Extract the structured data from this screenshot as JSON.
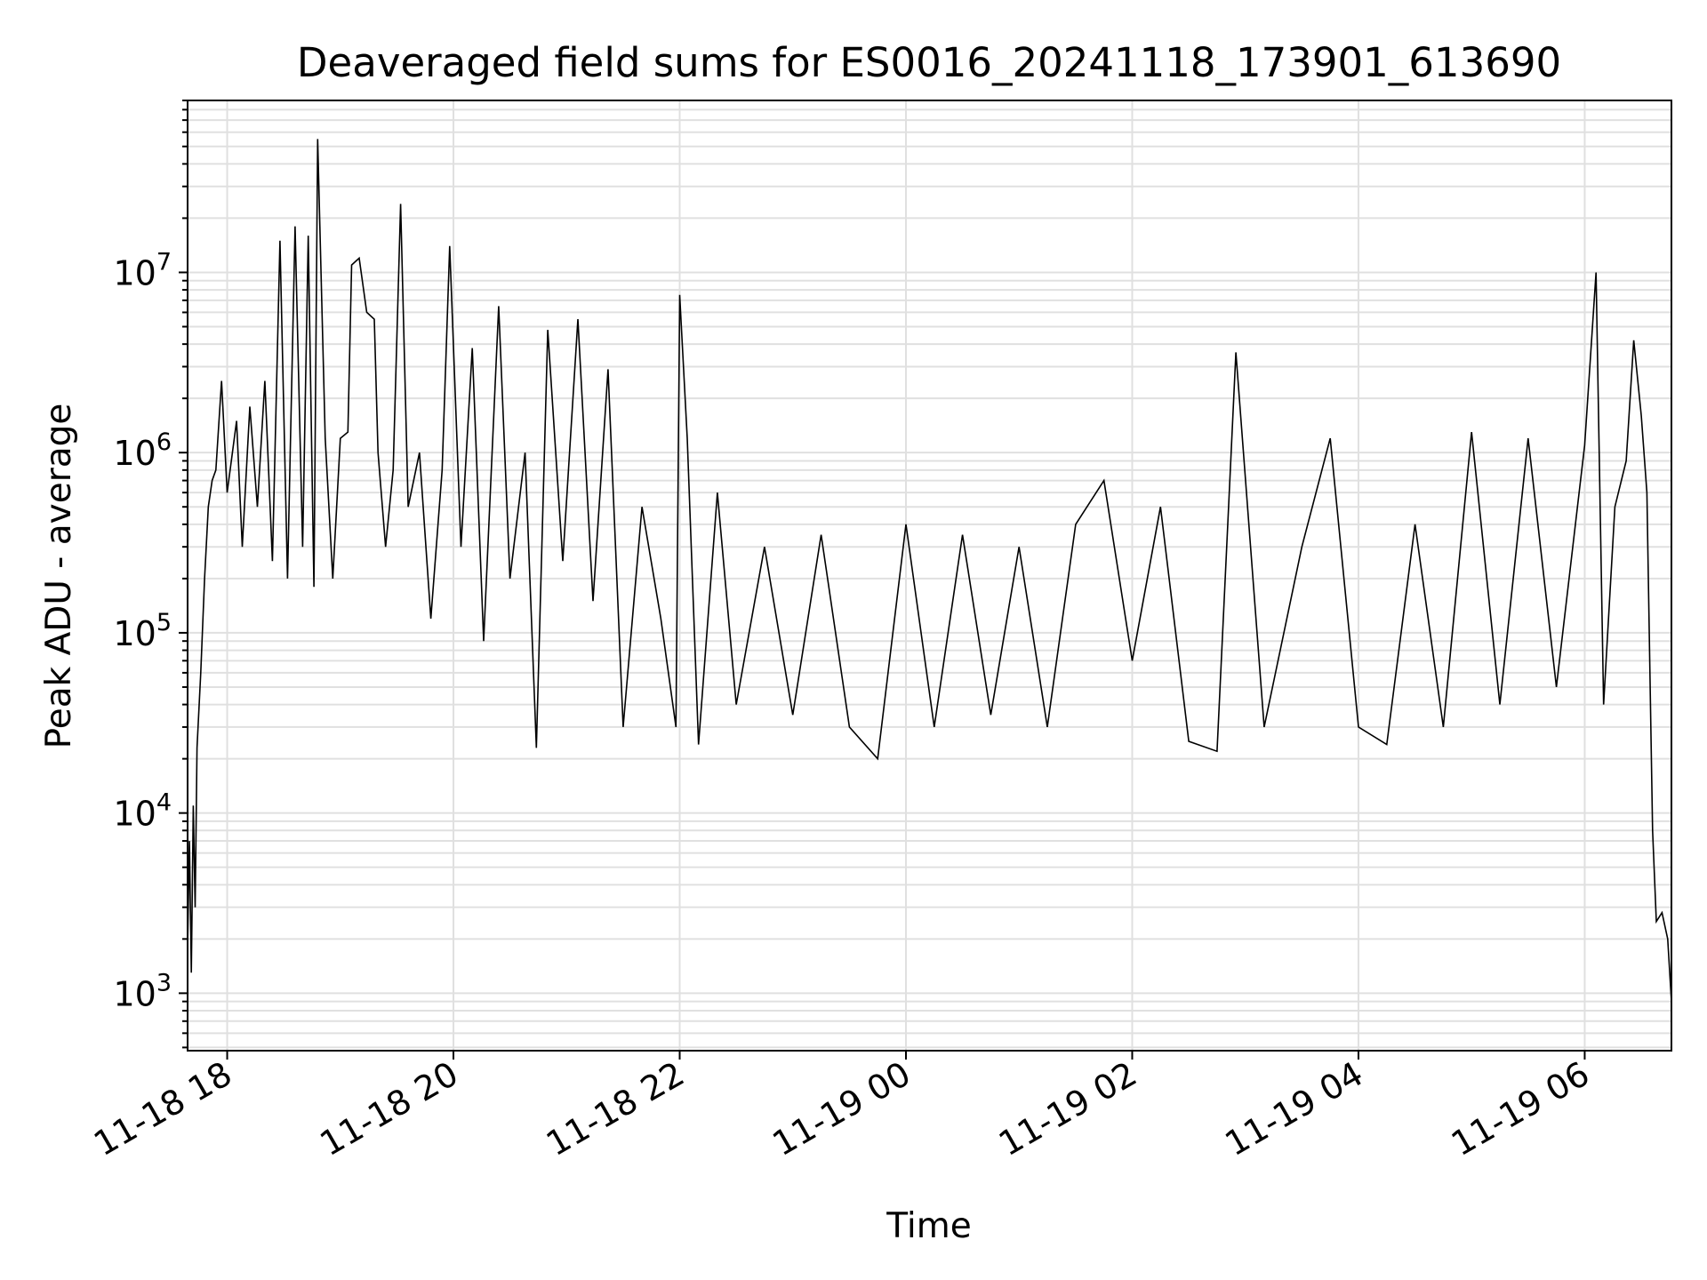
{
  "chart_data": {
    "type": "line",
    "title": "Deaveraged field sums for ES0016_20241118_173901_613690",
    "xlabel": "Time",
    "ylabel": "Peak ADU - average",
    "yscale": "log",
    "grid": "on",
    "legend": "none",
    "xlim": [
      "2024-11-18 17:39",
      "2024-11-19 06:46"
    ],
    "ylim": [
      480,
      90000000
    ],
    "x_ticks": [
      {
        "value": "2024-11-18 18:00",
        "label": "11-18 18"
      },
      {
        "value": "2024-11-18 20:00",
        "label": "11-18 20"
      },
      {
        "value": "2024-11-18 22:00",
        "label": "11-18 22"
      },
      {
        "value": "2024-11-19 00:00",
        "label": "11-19 00"
      },
      {
        "value": "2024-11-19 02:00",
        "label": "11-19 02"
      },
      {
        "value": "2024-11-19 04:00",
        "label": "11-19 04"
      },
      {
        "value": "2024-11-19 06:00",
        "label": "11-19 06"
      }
    ],
    "y_ticks": [
      {
        "value": 1000,
        "base": "10",
        "exp": "3"
      },
      {
        "value": 10000,
        "base": "10",
        "exp": "4"
      },
      {
        "value": 100000,
        "base": "10",
        "exp": "5"
      },
      {
        "value": 1000000,
        "base": "10",
        "exp": "6"
      },
      {
        "value": 10000000,
        "base": "10",
        "exp": "7"
      }
    ],
    "series": [
      {
        "color": "#000000",
        "points": [
          [
            "2024-11-18 17:39",
            1800
          ],
          [
            "2024-11-18 17:40",
            7000
          ],
          [
            "2024-11-18 17:41",
            1300
          ],
          [
            "2024-11-18 17:42",
            11000
          ],
          [
            "2024-11-18 17:43",
            3000
          ],
          [
            "2024-11-18 17:44",
            23000
          ],
          [
            "2024-11-18 17:46",
            60000
          ],
          [
            "2024-11-18 17:48",
            200000
          ],
          [
            "2024-11-18 17:50",
            500000
          ],
          [
            "2024-11-18 17:52",
            700000
          ],
          [
            "2024-11-18 17:54",
            800000
          ],
          [
            "2024-11-18 17:57",
            2500000
          ],
          [
            "2024-11-18 18:00",
            600000
          ],
          [
            "2024-11-18 18:05",
            1500000
          ],
          [
            "2024-11-18 18:08",
            300000
          ],
          [
            "2024-11-18 18:12",
            1800000
          ],
          [
            "2024-11-18 18:16",
            500000
          ],
          [
            "2024-11-18 18:20",
            2500000
          ],
          [
            "2024-11-18 18:24",
            250000
          ],
          [
            "2024-11-18 18:28",
            15000000
          ],
          [
            "2024-11-18 18:32",
            200000
          ],
          [
            "2024-11-18 18:36",
            18000000
          ],
          [
            "2024-11-18 18:40",
            300000
          ],
          [
            "2024-11-18 18:43",
            16000000
          ],
          [
            "2024-11-18 18:46",
            180000
          ],
          [
            "2024-11-18 18:48",
            55000000
          ],
          [
            "2024-11-18 18:52",
            1200000
          ],
          [
            "2024-11-18 18:56",
            200000
          ],
          [
            "2024-11-18 19:00",
            1200000
          ],
          [
            "2024-11-18 19:04",
            1300000
          ],
          [
            "2024-11-18 19:06",
            11000000
          ],
          [
            "2024-11-18 19:10",
            12000000
          ],
          [
            "2024-11-18 19:14",
            6000000
          ],
          [
            "2024-11-18 19:18",
            5500000
          ],
          [
            "2024-11-18 19:20",
            1000000
          ],
          [
            "2024-11-18 19:24",
            300000
          ],
          [
            "2024-11-18 19:28",
            800000
          ],
          [
            "2024-11-18 19:32",
            24000000
          ],
          [
            "2024-11-18 19:36",
            500000
          ],
          [
            "2024-11-18 19:42",
            1000000
          ],
          [
            "2024-11-18 19:48",
            120000
          ],
          [
            "2024-11-18 19:54",
            800000
          ],
          [
            "2024-11-18 19:58",
            14000000
          ],
          [
            "2024-11-18 20:04",
            300000
          ],
          [
            "2024-11-18 20:10",
            3800000
          ],
          [
            "2024-11-18 20:16",
            90000
          ],
          [
            "2024-11-18 20:24",
            6500000
          ],
          [
            "2024-11-18 20:30",
            200000
          ],
          [
            "2024-11-18 20:38",
            1000000
          ],
          [
            "2024-11-18 20:44",
            23000
          ],
          [
            "2024-11-18 20:50",
            4800000
          ],
          [
            "2024-11-18 20:58",
            250000
          ],
          [
            "2024-11-18 21:06",
            5500000
          ],
          [
            "2024-11-18 21:14",
            150000
          ],
          [
            "2024-11-18 21:22",
            2900000
          ],
          [
            "2024-11-18 21:30",
            30000
          ],
          [
            "2024-11-18 21:40",
            500000
          ],
          [
            "2024-11-18 21:50",
            120000
          ],
          [
            "2024-11-18 21:58",
            30000
          ],
          [
            "2024-11-18 22:00",
            7500000
          ],
          [
            "2024-11-18 22:04",
            1200000
          ],
          [
            "2024-11-18 22:10",
            24000
          ],
          [
            "2024-11-18 22:20",
            600000
          ],
          [
            "2024-11-18 22:30",
            40000
          ],
          [
            "2024-11-18 22:45",
            300000
          ],
          [
            "2024-11-18 23:00",
            35000
          ],
          [
            "2024-11-18 23:15",
            350000
          ],
          [
            "2024-11-18 23:30",
            30000
          ],
          [
            "2024-11-18 23:45",
            20000
          ],
          [
            "2024-11-19 00:00",
            400000
          ],
          [
            "2024-11-19 00:15",
            30000
          ],
          [
            "2024-11-19 00:30",
            350000
          ],
          [
            "2024-11-19 00:45",
            35000
          ],
          [
            "2024-11-19 01:00",
            300000
          ],
          [
            "2024-11-19 01:15",
            30000
          ],
          [
            "2024-11-19 01:30",
            400000
          ],
          [
            "2024-11-19 01:45",
            700000
          ],
          [
            "2024-11-19 02:00",
            70000
          ],
          [
            "2024-11-19 02:15",
            500000
          ],
          [
            "2024-11-19 02:30",
            25000
          ],
          [
            "2024-11-19 02:45",
            22000
          ],
          [
            "2024-11-19 02:55",
            3600000
          ],
          [
            "2024-11-19 03:10",
            30000
          ],
          [
            "2024-11-19 03:30",
            300000
          ],
          [
            "2024-11-19 03:45",
            1200000
          ],
          [
            "2024-11-19 04:00",
            30000
          ],
          [
            "2024-11-19 04:15",
            24000
          ],
          [
            "2024-11-19 04:30",
            400000
          ],
          [
            "2024-11-19 04:45",
            30000
          ],
          [
            "2024-11-19 05:00",
            1300000
          ],
          [
            "2024-11-19 05:15",
            40000
          ],
          [
            "2024-11-19 05:30",
            1200000
          ],
          [
            "2024-11-19 05:45",
            50000
          ],
          [
            "2024-11-19 06:00",
            1100000
          ],
          [
            "2024-11-19 06:06",
            10000000
          ],
          [
            "2024-11-19 06:10",
            40000
          ],
          [
            "2024-11-19 06:16",
            500000
          ],
          [
            "2024-11-19 06:22",
            900000
          ],
          [
            "2024-11-19 06:26",
            4200000
          ],
          [
            "2024-11-19 06:30",
            1600000
          ],
          [
            "2024-11-19 06:33",
            600000
          ],
          [
            "2024-11-19 06:36",
            8000
          ],
          [
            "2024-11-19 06:38",
            2500
          ],
          [
            "2024-11-19 06:41",
            2800
          ],
          [
            "2024-11-19 06:44",
            2000
          ],
          [
            "2024-11-19 06:46",
            900
          ]
        ]
      }
    ]
  }
}
